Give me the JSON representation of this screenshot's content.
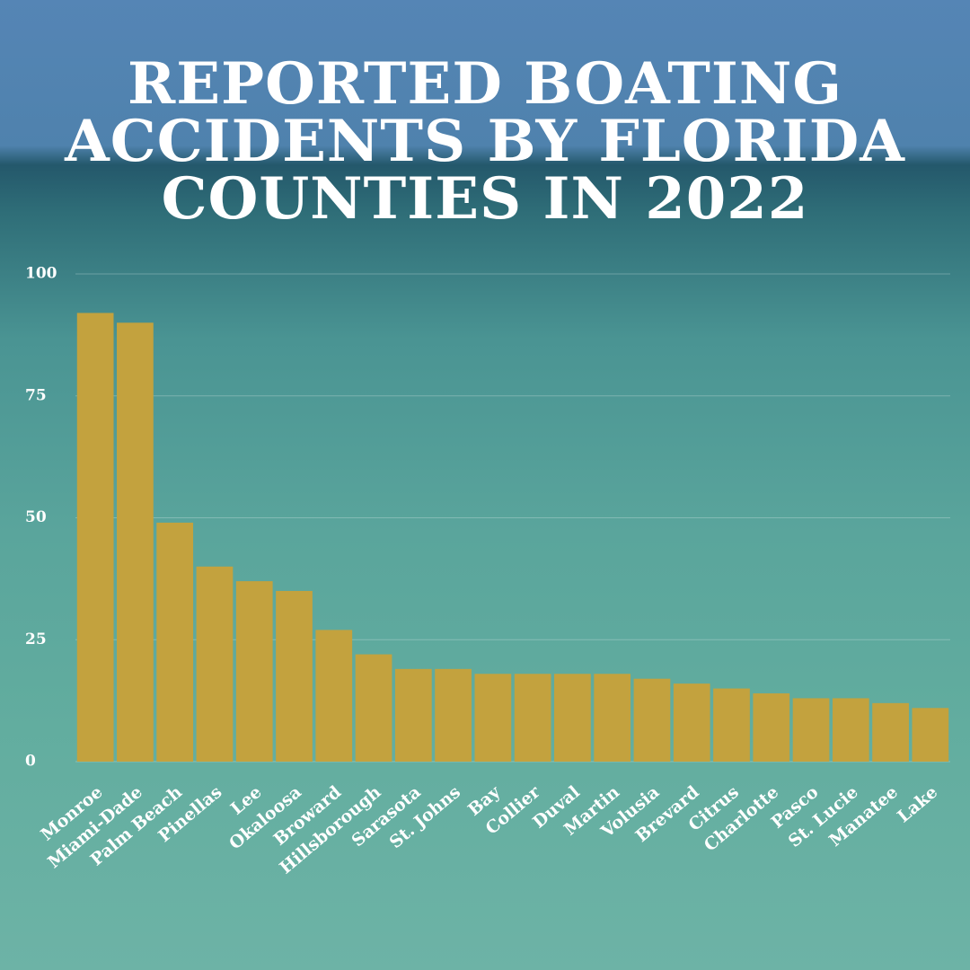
{
  "chart_data": {
    "type": "bar",
    "title": "REPORTED BOATING ACCIDENTS BY FLORIDA COUNTIES IN 2022",
    "categories": [
      "Monroe",
      "Miami-Dade",
      "Palm Beach",
      "Pinellas",
      "Lee",
      "Okaloosa",
      "Broward",
      "Hillsborough",
      "Sarasota",
      "St. Johns",
      "Bay",
      "Collier",
      "Duval",
      "Martin",
      "Volusia",
      "Brevard",
      "Citrus",
      "Charlotte",
      "Pasco",
      "St. Lucie",
      "Manatee",
      "Lake"
    ],
    "values": [
      92,
      90,
      49,
      40,
      37,
      35,
      27,
      22,
      19,
      19,
      18,
      18,
      18,
      18,
      17,
      16,
      15,
      14,
      13,
      13,
      12,
      11
    ],
    "color": "#c3a23e",
    "ylim": [
      0,
      100
    ],
    "yticks": [
      0,
      25,
      50,
      75,
      100
    ],
    "grid": true
  }
}
